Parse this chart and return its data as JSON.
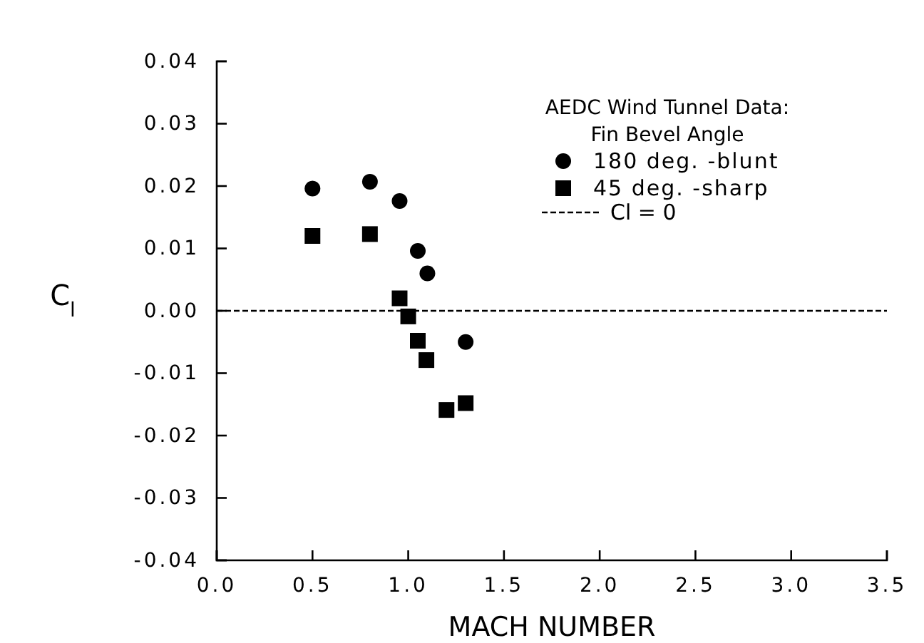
{
  "chart_data": {
    "type": "scatter",
    "xlabel": "MACH NUMBER",
    "ylabel": "C$_{l}$",
    "legend_title": "AEDC Wind Tunnel Data: Fin Bevel Angle",
    "legend": "top right",
    "xlim": [
      0,
      3.5
    ],
    "xticks": [
      {
        "value": 0,
        "label": "0.0"
      },
      0.5,
      {
        "value": 1,
        "label": "1.0"
      },
      1.5,
      {
        "value": 2,
        "label": "2.0"
      },
      2.5,
      {
        "value": 3,
        "label": "3.0"
      },
      3.5
    ],
    "ylim": [
      -0.04,
      0.04
    ],
    "yticks": [
      {
        "value": -0.04,
        "label": "-0.04"
      },
      {
        "value": -0.03,
        "label": "-0.03"
      },
      {
        "value": -0.02,
        "label": "-0.02"
      },
      {
        "value": -0.01,
        "label": "-0.01"
      },
      {
        "value": 0,
        "label": "0.00"
      },
      {
        "value": 0.01,
        "label": "0.01"
      },
      {
        "value": 0.02,
        "label": "0.02"
      },
      {
        "value": 0.03,
        "label": "0.03"
      },
      {
        "value": 0.04,
        "label": "0.04"
      }
    ],
    "series": [
      {
        "name": "180 deg. -blunt",
        "color": "#000000",
        "marker": "circle",
        "x": [
          0.5,
          0.8,
          0.955,
          1.05,
          1.1,
          1.3
        ],
        "values": [
          0.0196,
          0.0207,
          0.0176,
          0.0096,
          0.006,
          -0.005
        ]
      },
      {
        "name": "45 deg. -sharp",
        "color": "#000000",
        "marker": "square",
        "x": [
          0.5,
          0.8,
          0.955,
          1.0,
          1.05,
          1.095,
          1.2,
          1.3
        ],
        "values": [
          0.012,
          0.0123,
          0.002,
          -0.0009,
          -0.0048,
          -0.0079,
          -0.0159,
          -0.0148
        ]
      }
    ],
    "ref_lines": [
      {
        "axis": "y",
        "value": 0,
        "label": "Cl = 0",
        "color": "#000000",
        "line_style": "dashed"
      }
    ]
  }
}
